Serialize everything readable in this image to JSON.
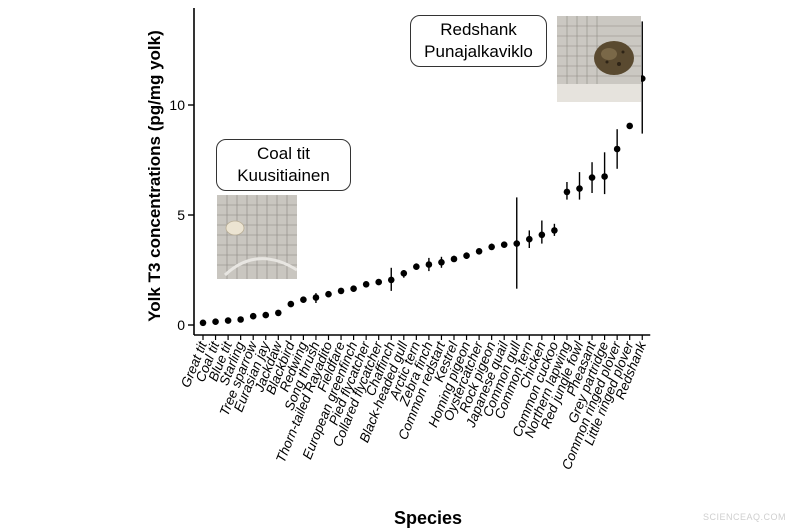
{
  "chart_data": {
    "type": "scatter",
    "ylabel": "Yolk T3 concentrations (pg/mg yolk)",
    "xlabel": "Species",
    "ylim": [
      0,
      14.5
    ],
    "yticks": [
      0,
      5,
      10
    ],
    "grid": false,
    "error_bars": true,
    "categories": [
      "Great tit",
      "Coal tit",
      "Blue tit",
      "Starling",
      "Tree sparrow",
      "Eurasian jay",
      "Jackdaw",
      "Blackbird",
      "Redwing",
      "Song thrush",
      "Thorn-tailed Rayadito",
      "Fieldfare",
      "European greenfinch",
      "Pied flycatcher",
      "Collared flycatcher",
      "Chaffinch",
      "Black-headed gull",
      "Arctic tern",
      "Zebra finch",
      "Common redstart",
      "Kestrel",
      "Homing pigeon",
      "Oystercatcher",
      "Rock pigeon",
      "Japanese quail",
      "Common gull",
      "Common tern",
      "Chicken",
      "Common cuckoo",
      "Northern lapwing",
      "Red jungle fowl",
      "Pheasant",
      "Grey partridge",
      "Common ringed plover",
      "Little ringed plover",
      "Redshank"
    ],
    "values": [
      0.1,
      0.15,
      0.2,
      0.25,
      0.4,
      0.45,
      0.55,
      0.95,
      1.15,
      1.25,
      1.4,
      1.55,
      1.65,
      1.85,
      1.95,
      2.05,
      2.35,
      2.65,
      2.75,
      2.85,
      3.0,
      3.15,
      3.35,
      3.55,
      3.65,
      3.7,
      3.9,
      4.1,
      4.3,
      6.05,
      6.2,
      6.7,
      6.75,
      8.0,
      9.05,
      11.2
    ],
    "error_low": [
      0.1,
      0.15,
      0.2,
      0.25,
      0.4,
      0.45,
      0.5,
      0.95,
      1.1,
      1.0,
      1.4,
      1.5,
      1.6,
      1.8,
      1.95,
      1.55,
      2.15,
      2.55,
      2.45,
      2.6,
      2.9,
      3.0,
      3.3,
      3.45,
      3.55,
      1.65,
      3.5,
      3.7,
      4.05,
      5.7,
      5.7,
      6.0,
      5.95,
      7.1,
      9.0,
      8.7
    ],
    "error_high": [
      0.15,
      0.2,
      0.25,
      0.3,
      0.45,
      0.5,
      0.6,
      1.05,
      1.25,
      1.45,
      1.45,
      1.6,
      1.75,
      1.9,
      2.0,
      2.6,
      2.5,
      2.8,
      3.05,
      3.1,
      3.15,
      3.3,
      3.45,
      3.7,
      3.75,
      5.8,
      4.3,
      4.75,
      4.6,
      6.5,
      6.95,
      7.4,
      7.85,
      8.9,
      9.1,
      13.8
    ]
  },
  "annotations": [
    {
      "line1": "Coal tit",
      "line2": "Kuusitiainen"
    },
    {
      "line1": "Redshank",
      "line2": "Punajalkaviklo"
    }
  ],
  "watermark": "SCIENCEAQ.COM",
  "colors": {
    "marker": "#000000",
    "axis": "#000000",
    "photo_bg": "#cfcbc3",
    "egg_small": "#ece4d2",
    "egg_large": "#5a4a30"
  }
}
